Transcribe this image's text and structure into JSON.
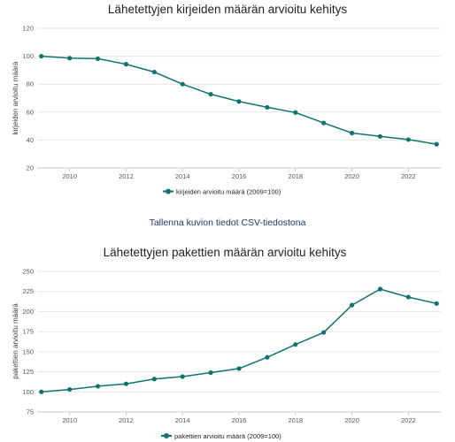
{
  "link": {
    "csv_label": "Tallenna kuvion tiedot CSV-tiedostona"
  },
  "colors": {
    "series": "#0f7370",
    "grid": "#e6e6e6"
  },
  "chart_data": [
    {
      "type": "line",
      "title": "Lähetettyjen kirjeiden määrän arvioitu kehitys",
      "xlabel": "",
      "ylabel": "kirjeiden arvioitu määrä",
      "x": [
        2009,
        2010,
        2011,
        2012,
        2013,
        2014,
        2015,
        2016,
        2017,
        2018,
        2019,
        2020,
        2021,
        2022,
        2023
      ],
      "xticks": [
        "2010",
        "2012",
        "2014",
        "2016",
        "2018",
        "2020",
        "2022"
      ],
      "yticks": [
        "20",
        "40",
        "60",
        "80",
        "100",
        "120"
      ],
      "ylim": [
        20,
        120
      ],
      "series": [
        {
          "name": "kirjeiden arvioitu määrä (2009=100)",
          "values": [
            100,
            98.6,
            98.2,
            94.3,
            88.7,
            80,
            72.8,
            67.6,
            63.4,
            59.7,
            52.2,
            45,
            42.6,
            40.3,
            37
          ]
        }
      ],
      "legend": "bottom-center",
      "grid": true
    },
    {
      "type": "line",
      "title": "Lähetettyjen pakettien määrän arvioitu kehitys",
      "xlabel": "",
      "ylabel": "pakettien arvioitu määrä",
      "x": [
        2009,
        2010,
        2011,
        2012,
        2013,
        2014,
        2015,
        2016,
        2017,
        2018,
        2019,
        2020,
        2021,
        2022,
        2023
      ],
      "xticks": [
        "2010",
        "2012",
        "2014",
        "2016",
        "2018",
        "2020",
        "2022"
      ],
      "yticks": [
        "75",
        "100",
        "125",
        "150",
        "175",
        "200",
        "225",
        "250"
      ],
      "ylim": [
        75,
        250
      ],
      "series": [
        {
          "name": "pakettien arvioitu määrä (2009=100)",
          "values": [
            100,
            103,
            107,
            110,
            116,
            119,
            124,
            129,
            143,
            159,
            174,
            208,
            228,
            218,
            210
          ]
        }
      ],
      "legend": "bottom-center",
      "grid": true
    }
  ]
}
